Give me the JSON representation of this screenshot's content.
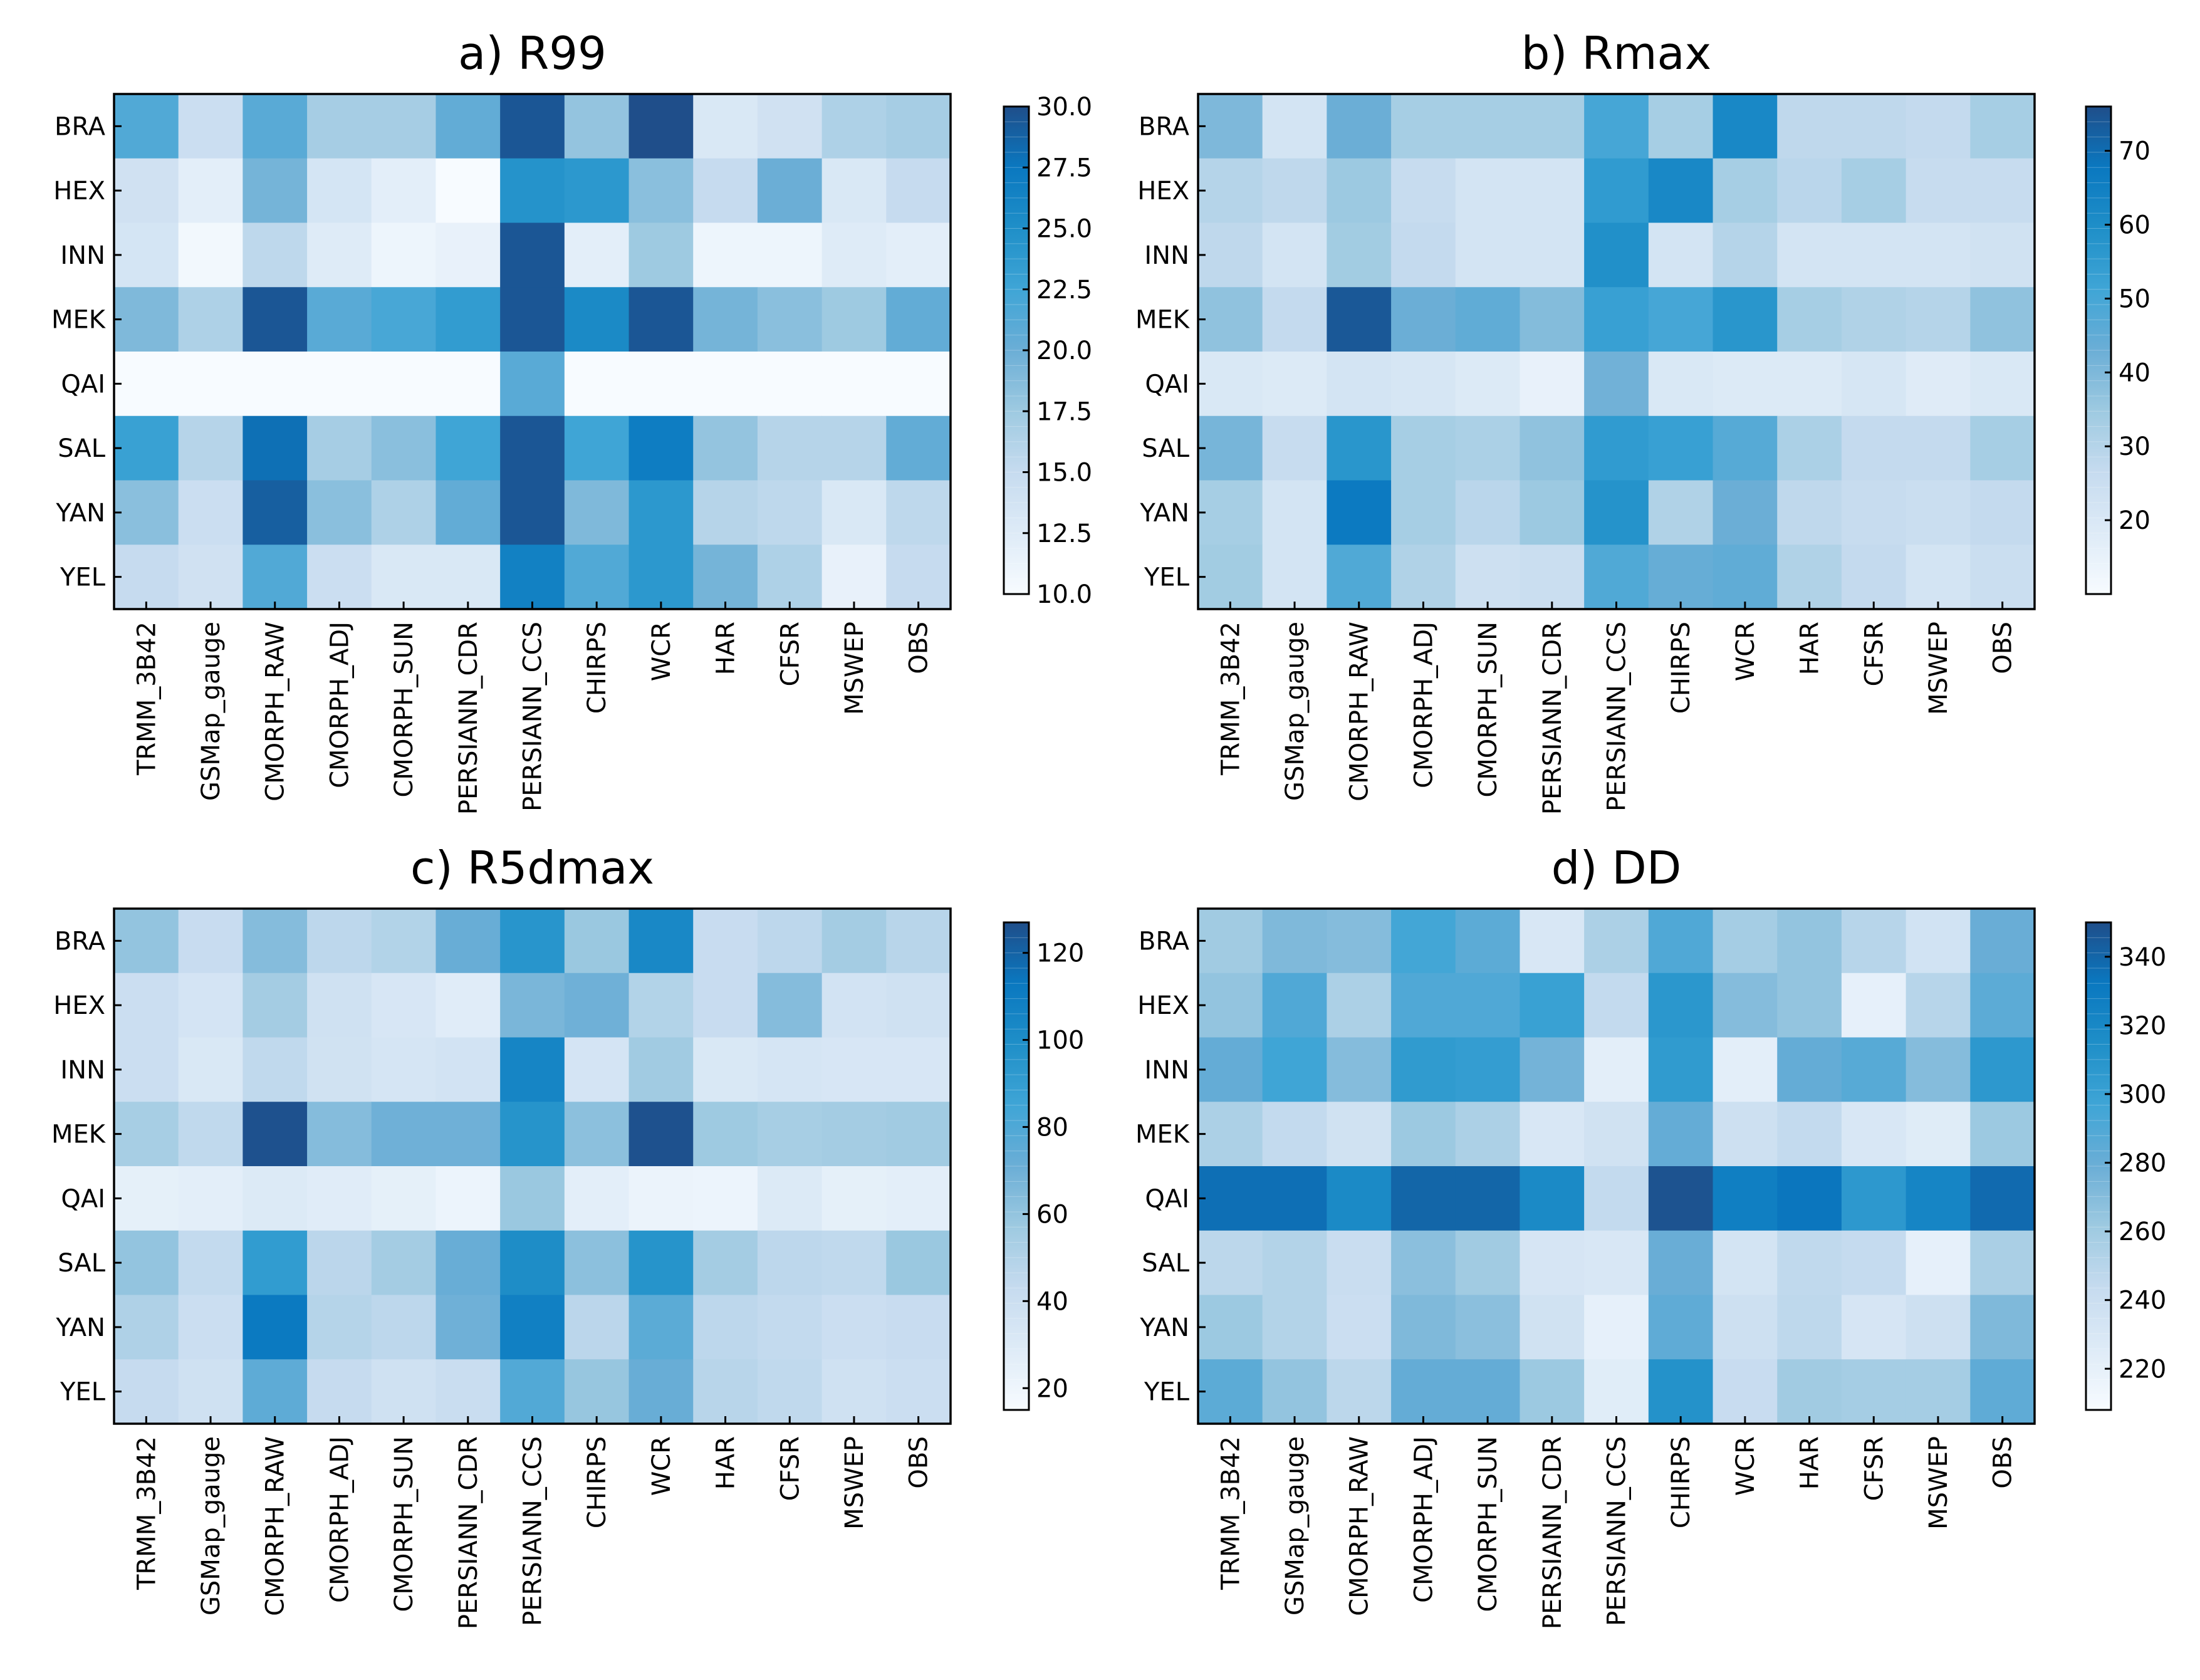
{
  "figure": {
    "rows": [
      "BRA",
      "HEX",
      "INN",
      "MEK",
      "QAI",
      "SAL",
      "YAN",
      "YEL"
    ],
    "columns": [
      "TRMM_3B42",
      "GSMap_gauge",
      "CMORPH_RAW",
      "CMORPH_ADJ",
      "CMORPH_SUN",
      "PERSIANN_CDR",
      "PERSIANN_CCS",
      "CHIRPS",
      "WCR",
      "HAR",
      "CFSR",
      "MSWEP",
      "OBS"
    ],
    "colormap": [
      "#f7fbff",
      "#deebf7",
      "#c6dbef",
      "#9ecae1",
      "#6baed6",
      "#3fa5d6",
      "#1f8fc8",
      "#0a78c0",
      "#1f4e8a"
    ]
  },
  "chart_data": [
    {
      "type": "heatmap",
      "panel": "a",
      "title": "a) R99",
      "colorbar": {
        "min": 10.0,
        "max": 30.0,
        "ticks": [
          "30.0",
          "27.5",
          "25.0",
          "22.5",
          "20.0",
          "17.5",
          "15.0",
          "12.5",
          "10.0"
        ],
        "tick_values": [
          30.0,
          27.5,
          25.0,
          22.5,
          20.0,
          17.5,
          15.0,
          12.5,
          10.0
        ]
      },
      "values": [
        [
          21.5,
          14.5,
          21.0,
          17.0,
          17.0,
          20.5,
          29.5,
          18.0,
          30.0,
          13.0,
          14.0,
          16.5,
          17.0
        ],
        [
          14.0,
          12.0,
          19.5,
          13.5,
          12.0,
          10.0,
          24.5,
          24.0,
          18.5,
          15.0,
          20.0,
          13.0,
          15.0
        ],
        [
          13.5,
          10.5,
          15.5,
          12.5,
          11.0,
          11.5,
          29.5,
          12.0,
          17.5,
          11.0,
          11.0,
          12.5,
          12.0
        ],
        [
          19.0,
          16.5,
          29.5,
          21.0,
          22.0,
          23.5,
          29.5,
          25.5,
          29.5,
          19.5,
          18.5,
          17.5,
          20.5
        ],
        [
          10.0,
          10.0,
          10.0,
          10.0,
          10.0,
          10.0,
          21.0,
          10.0,
          10.0,
          10.0,
          10.0,
          10.0,
          10.0
        ],
        [
          23.0,
          16.0,
          28.0,
          17.0,
          18.5,
          22.5,
          29.5,
          22.5,
          27.0,
          18.0,
          16.0,
          16.0,
          20.5
        ],
        [
          18.5,
          14.5,
          29.0,
          18.5,
          16.5,
          20.5,
          29.5,
          19.0,
          24.0,
          16.0,
          15.5,
          13.0,
          15.5
        ],
        [
          15.0,
          14.0,
          21.5,
          14.5,
          13.0,
          13.0,
          26.5,
          21.5,
          24.0,
          19.5,
          16.5,
          11.5,
          15.0
        ]
      ]
    },
    {
      "type": "heatmap",
      "panel": "b",
      "title": "b) Rmax",
      "colorbar": {
        "min": 10,
        "max": 76,
        "ticks": [
          "70",
          "60",
          "50",
          "40",
          "30",
          "20"
        ],
        "tick_values": [
          70,
          60,
          50,
          40,
          30,
          20
        ]
      },
      "values": [
        [
          40,
          22,
          43,
          33,
          33,
          33,
          50,
          33,
          62,
          28,
          28,
          27,
          33
        ],
        [
          30,
          28,
          35,
          26,
          22,
          22,
          55,
          62,
          33,
          29,
          33,
          26,
          26
        ],
        [
          28,
          22,
          34,
          27,
          22,
          22,
          59,
          22,
          30,
          22,
          22,
          22,
          23
        ],
        [
          37,
          27,
          74,
          43,
          45,
          39,
          53,
          50,
          57,
          33,
          31,
          30,
          37
        ],
        [
          20,
          19,
          22,
          21,
          19,
          15,
          42,
          20,
          19,
          19,
          21,
          18,
          20
        ],
        [
          41,
          26,
          57,
          33,
          32,
          37,
          55,
          53,
          47,
          32,
          27,
          27,
          33
        ],
        [
          33,
          22,
          67,
          33,
          29,
          35,
          58,
          31,
          43,
          28,
          26,
          25,
          27
        ],
        [
          34,
          22,
          48,
          31,
          24,
          25,
          48,
          44,
          45,
          31,
          27,
          22,
          25
        ]
      ]
    },
    {
      "type": "heatmap",
      "panel": "c",
      "title": "c) R5dmax",
      "colorbar": {
        "min": 15,
        "max": 127,
        "ticks": [
          "120",
          "100",
          "80",
          "60",
          "40",
          "20"
        ],
        "tick_values": [
          120,
          100,
          80,
          60,
          40,
          20
        ]
      },
      "values": [
        [
          60,
          42,
          64,
          46,
          50,
          72,
          95,
          58,
          103,
          42,
          46,
          55,
          48
        ],
        [
          40,
          35,
          55,
          38,
          33,
          28,
          67,
          70,
          50,
          42,
          64,
          36,
          38
        ],
        [
          40,
          32,
          45,
          37,
          34,
          36,
          105,
          35,
          56,
          32,
          34,
          33,
          33
        ],
        [
          54,
          45,
          126,
          64,
          70,
          70,
          96,
          62,
          126,
          57,
          54,
          55,
          56
        ],
        [
          25,
          26,
          30,
          28,
          25,
          21,
          58,
          26,
          22,
          21,
          30,
          25,
          26
        ],
        [
          60,
          44,
          91,
          47,
          55,
          72,
          100,
          62,
          96,
          55,
          46,
          45,
          58
        ],
        [
          51,
          40,
          112,
          49,
          46,
          70,
          108,
          47,
          76,
          46,
          44,
          40,
          42
        ],
        [
          43,
          38,
          75,
          43,
          38,
          41,
          79,
          59,
          72,
          48,
          45,
          38,
          40
        ]
      ]
    },
    {
      "type": "heatmap",
      "panel": "d",
      "title": "d) DD",
      "colorbar": {
        "min": 208,
        "max": 350,
        "ticks": [
          "340",
          "320",
          "300",
          "280",
          "260",
          "240",
          "220"
        ],
        "tick_values": [
          340,
          320,
          300,
          280,
          260,
          240,
          220
        ]
      },
      "values": [
        [
          260,
          272,
          270,
          295,
          285,
          230,
          255,
          290,
          258,
          265,
          250,
          235,
          280
        ],
        [
          265,
          290,
          255,
          290,
          290,
          300,
          245,
          308,
          270,
          265,
          220,
          250,
          285
        ],
        [
          282,
          297,
          270,
          305,
          303,
          276,
          222,
          305,
          222,
          282,
          287,
          270,
          307
        ],
        [
          255,
          245,
          236,
          262,
          255,
          230,
          236,
          282,
          238,
          245,
          230,
          225,
          262
        ],
        [
          336,
          336,
          318,
          340,
          340,
          318,
          245,
          348,
          327,
          333,
          307,
          322,
          338
        ],
        [
          248,
          252,
          241,
          268,
          260,
          232,
          230,
          280,
          234,
          246,
          244,
          220,
          256
        ],
        [
          262,
          252,
          240,
          272,
          268,
          236,
          220,
          284,
          238,
          247,
          232,
          238,
          272
        ],
        [
          285,
          265,
          248,
          282,
          282,
          262,
          224,
          312,
          242,
          260,
          258,
          258,
          284
        ]
      ]
    }
  ]
}
